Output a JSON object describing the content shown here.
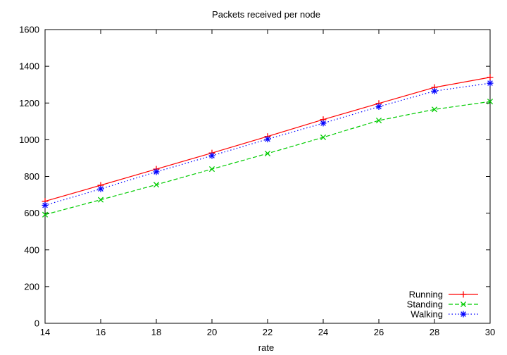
{
  "chart_data": {
    "type": "line",
    "title": "Packets received per node",
    "xlabel": "rate",
    "ylabel": "",
    "xlim": [
      14,
      30
    ],
    "ylim": [
      0,
      1600
    ],
    "xticks": [
      14,
      16,
      18,
      20,
      22,
      24,
      26,
      28,
      30
    ],
    "yticks": [
      0,
      200,
      400,
      600,
      800,
      1000,
      1200,
      1400,
      1600
    ],
    "grid": false,
    "legend_position": "bottom-right",
    "x": [
      14,
      16,
      18,
      20,
      22,
      24,
      26,
      28,
      30
    ],
    "series": [
      {
        "name": "Running",
        "color": "#ff0000",
        "marker": "plus",
        "dash": "solid",
        "values": [
          665,
          752,
          840,
          928,
          1018,
          1110,
          1198,
          1285,
          1340
        ]
      },
      {
        "name": "Standing",
        "color": "#00cc00",
        "marker": "cross",
        "dash": "dashed",
        "values": [
          592,
          673,
          755,
          840,
          925,
          1013,
          1105,
          1165,
          1208
        ]
      },
      {
        "name": "Walking",
        "color": "#0000ff",
        "marker": "star",
        "dash": "dotted",
        "values": [
          643,
          732,
          825,
          913,
          1003,
          1090,
          1180,
          1265,
          1308
        ]
      }
    ]
  }
}
